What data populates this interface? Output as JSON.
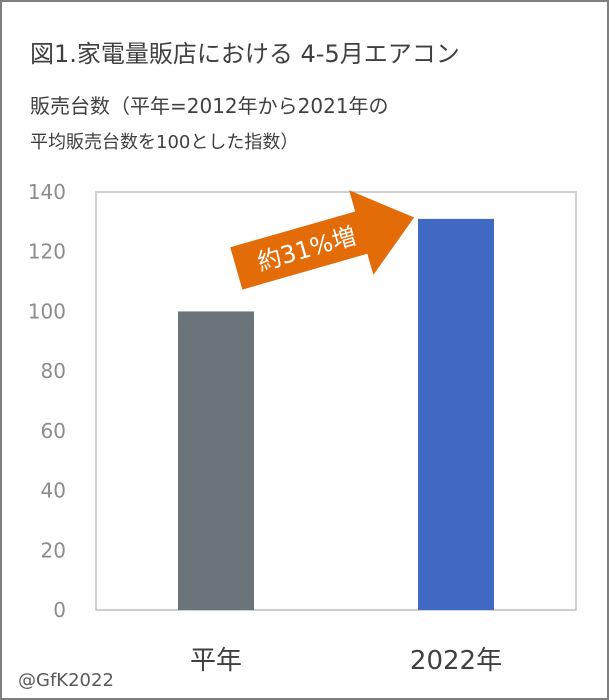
{
  "header": {
    "title": "図1.家電量販店における 4-5月エアコン",
    "subtitle_line1": "販売台数（平年=2012年から2021年の",
    "subtitle_line2": "平均販売台数を100とした指数）"
  },
  "credit": "@GfK2022",
  "annotation": {
    "text": "約31%増",
    "color": "#e36c09"
  },
  "chart_data": {
    "type": "bar",
    "categories": [
      "平年",
      "2022年"
    ],
    "values": [
      100,
      131
    ],
    "colors": [
      "#6b7479",
      "#4169c4"
    ],
    "ylim": [
      0,
      140
    ],
    "yticks": [
      0,
      20,
      40,
      60,
      80,
      100,
      120,
      140
    ],
    "grid": false,
    "legend": "none"
  }
}
